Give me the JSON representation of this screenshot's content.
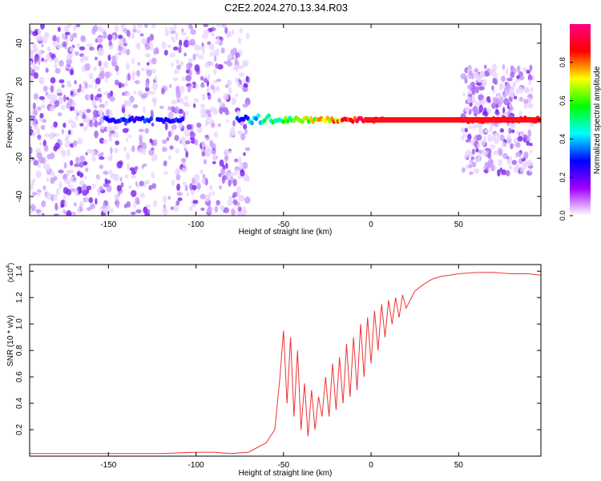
{
  "title": "C2E2.2024.270.13.34.R03",
  "chart_data": [
    {
      "type": "heatmap",
      "xlabel": "Height of straight line (km)",
      "ylabel": "Frequency (Hz)",
      "xlim": [
        -195,
        97
      ],
      "ylim": [
        -50,
        50
      ],
      "xticks": [
        -150,
        -100,
        -50,
        0,
        50
      ],
      "yticks": [
        -40,
        -20,
        0,
        20,
        40
      ],
      "colorbar": {
        "label": "Normalized spectral amplitude",
        "range": [
          0,
          1
        ],
        "ticks": [
          0.0,
          0.2,
          0.4,
          0.6,
          0.8
        ],
        "tick_labels": [
          "0.0",
          "0.2",
          "0.4",
          "0.6",
          "0.8"
        ],
        "colors": [
          "#ffffff",
          "#a000ff",
          "#0000ff",
          "#00ffff",
          "#00ff00",
          "#ffff00",
          "#ff0000",
          "#ff0080"
        ]
      },
      "description": "Diffuse low-amplitude noise across all frequencies for x < -70 and x > 50; a narrow band near 0 Hz with amplitude rising from about 0.3 near x = -70 to about 1.0 for x > -10."
    },
    {
      "type": "line",
      "xlabel": "Height of straight line (km)",
      "ylabel": "SNR (10 * v/v)",
      "scale_label": "(x10",
      "scale_exp": "4",
      "xlim": [
        -195,
        97
      ],
      "ylim": [
        0,
        1.45
      ],
      "xticks": [
        -150,
        -100,
        -50,
        0,
        50
      ],
      "yticks": [
        0.2,
        0.4,
        0.6,
        0.8,
        1.0,
        1.2,
        1.4
      ],
      "ytick_labels": [
        "0.2",
        "0.4",
        "0.6",
        "0.8",
        "1.0",
        "1.2",
        "1.4"
      ],
      "color": "#ee3333",
      "series": [
        {
          "x": [
            -195,
            -180,
            -160,
            -140,
            -120,
            -100,
            -90,
            -80,
            -70,
            -60,
            -55,
            -52,
            -50,
            -48,
            -46,
            -44,
            -42,
            -40,
            -38,
            -36,
            -34,
            -32,
            -30,
            -28,
            -26,
            -24,
            -22,
            -20,
            -18,
            -16,
            -14,
            -12,
            -10,
            -8,
            -6,
            -4,
            -2,
            0,
            2,
            4,
            6,
            8,
            10,
            12,
            14,
            16,
            18,
            20,
            25,
            30,
            35,
            40,
            45,
            50,
            60,
            70,
            80,
            90,
            97
          ],
          "y": [
            0.02,
            0.02,
            0.02,
            0.02,
            0.02,
            0.03,
            0.03,
            0.02,
            0.03,
            0.1,
            0.2,
            0.6,
            0.95,
            0.4,
            0.9,
            0.3,
            0.8,
            0.2,
            0.55,
            0.15,
            0.5,
            0.2,
            0.45,
            0.3,
            0.6,
            0.3,
            0.7,
            0.35,
            0.75,
            0.4,
            0.85,
            0.45,
            0.9,
            0.5,
            1.0,
            0.6,
            1.05,
            0.7,
            1.1,
            0.8,
            1.15,
            0.9,
            1.18,
            1.0,
            1.2,
            1.05,
            1.22,
            1.12,
            1.25,
            1.3,
            1.34,
            1.36,
            1.37,
            1.38,
            1.39,
            1.39,
            1.38,
            1.38,
            1.37
          ]
        }
      ]
    }
  ]
}
